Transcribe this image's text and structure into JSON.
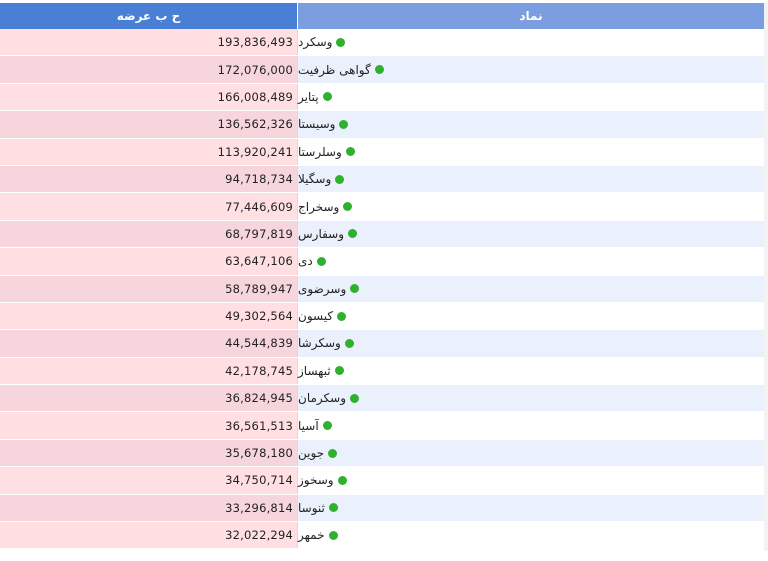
{
  "table": {
    "headers": {
      "value": "ح ب عرضه",
      "symbol": "نماد"
    },
    "colors": {
      "header_value_bg": "#4a7fd6",
      "header_symbol_bg": "#7a9edf",
      "value_bg": "#ffdfe2",
      "symbol_alt_bg": "#eaf1fc",
      "status_dot": "#2fb12f"
    },
    "rows": [
      {
        "symbol": "وسکرد",
        "value": "193,836,493"
      },
      {
        "symbol": "گواهی ظرفیت",
        "value": "172,076,000"
      },
      {
        "symbol": "پتایر",
        "value": "166,008,489"
      },
      {
        "symbol": "وسیستا",
        "value": "136,562,326"
      },
      {
        "symbol": "وسلرستا",
        "value": "113,920,241"
      },
      {
        "symbol": "وسگیلا",
        "value": "94,718,734"
      },
      {
        "symbol": "وسخراج",
        "value": "77,446,609"
      },
      {
        "symbol": "وسفارس",
        "value": "68,797,819"
      },
      {
        "symbol": "دی",
        "value": "63,647,106"
      },
      {
        "symbol": "وسرضوی",
        "value": "58,789,947"
      },
      {
        "symbol": "کیسون",
        "value": "49,302,564"
      },
      {
        "symbol": "وسکرشا",
        "value": "44,544,839"
      },
      {
        "symbol": "ثبهساز",
        "value": "42,178,745"
      },
      {
        "symbol": "وسکرمان",
        "value": "36,824,945"
      },
      {
        "symbol": "آسیا",
        "value": "36,561,513"
      },
      {
        "symbol": "جوین",
        "value": "35,678,180"
      },
      {
        "symbol": "وسخوز",
        "value": "34,750,714"
      },
      {
        "symbol": "ثنوسا",
        "value": "33,296,814"
      },
      {
        "symbol": "خمهر",
        "value": "32,022,294"
      }
    ]
  }
}
